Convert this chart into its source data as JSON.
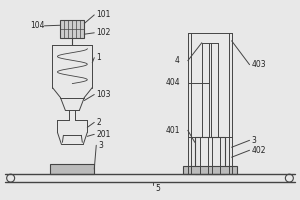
{
  "bg_color": "#e8e8e8",
  "line_color": "#444444",
  "text_color": "#222222",
  "figsize": [
    3.0,
    2.0
  ],
  "dpi": 100
}
